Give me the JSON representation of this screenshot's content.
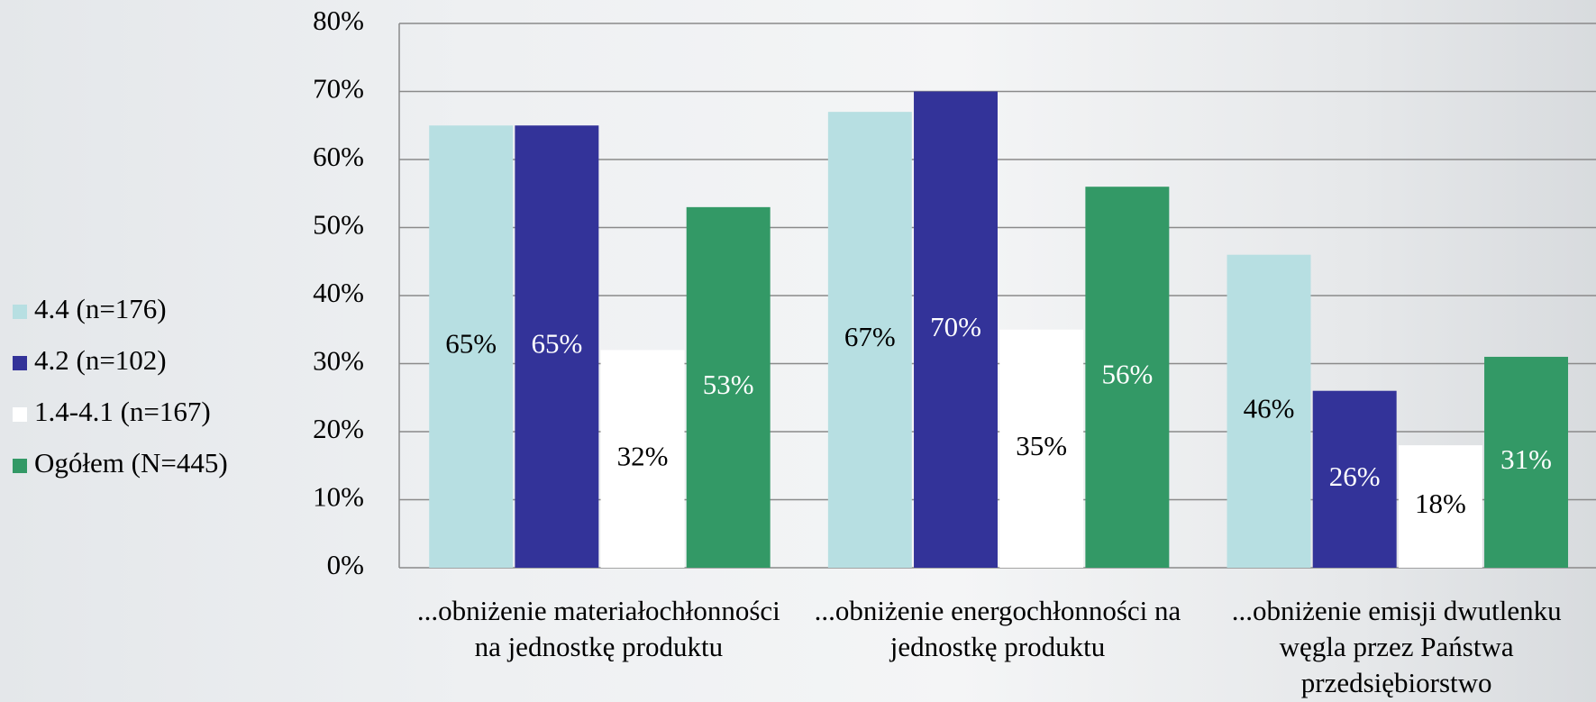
{
  "chart_data": {
    "type": "bar",
    "categories": [
      "...obniżenie materiałochłonności na jednostkę produktu",
      "...obniżenie energochłonności na jednostkę produktu",
      "...obniżenie emisji dwutlenku węgla przez Państwa przedsiębiorstwo"
    ],
    "series": [
      {
        "name": "4.4 (n=176)",
        "color": "#b7dfe2",
        "values": [
          65,
          67,
          46
        ],
        "value_labels": [
          "65%",
          "67%",
          "46%"
        ]
      },
      {
        "name": "4.2 (n=102)",
        "color": "#333399",
        "values": [
          65,
          70,
          26
        ],
        "value_labels": [
          "65%",
          "70%",
          "26%"
        ]
      },
      {
        "name": "1.4-4.1 (n=167)",
        "color": "#ffffff",
        "values": [
          32,
          35,
          18
        ],
        "value_labels": [
          "32%",
          "35%",
          "18%"
        ]
      },
      {
        "name": "Ogółem (N=445)",
        "color": "#339966",
        "values": [
          53,
          56,
          31
        ],
        "value_labels": [
          "53%",
          "56%",
          "31%"
        ]
      }
    ],
    "ylim": [
      0,
      80
    ],
    "yticks": [
      {
        "value": 0,
        "label": "0%"
      },
      {
        "value": 10,
        "label": "10%"
      },
      {
        "value": 20,
        "label": "20%"
      },
      {
        "value": 30,
        "label": "30%"
      },
      {
        "value": 40,
        "label": "40%"
      },
      {
        "value": 50,
        "label": "50%"
      },
      {
        "value": 60,
        "label": "60%"
      },
      {
        "value": 70,
        "label": "70%"
      },
      {
        "value": 80,
        "label": "80%"
      }
    ],
    "grid": true,
    "legend": "left"
  }
}
